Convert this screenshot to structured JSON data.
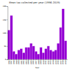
{
  "chart_data": {
    "type": "bar",
    "title": "Mean tax collected per year (1996-2019)",
    "x_label": "Year",
    "categories": [
      "1996",
      "1997",
      "1998",
      "1999",
      "2000",
      "2001",
      "2002",
      "2003",
      "2004",
      "2005",
      "2006",
      "2007",
      "2008",
      "2009",
      "2010",
      "2011",
      "2012",
      "2013",
      "2014",
      "2015",
      "2016",
      "2017",
      "2018",
      "2019"
    ],
    "values": [
      110,
      165,
      30,
      20,
      35,
      40,
      25,
      45,
      45,
      60,
      50,
      30,
      20,
      45,
      25,
      40,
      50,
      35,
      30,
      35,
      60,
      120,
      190,
      70
    ],
    "color": "#9400d3",
    "ylim": [
      0,
      200
    ],
    "yticks": [
      0,
      50,
      100,
      150,
      200
    ],
    "grid": false
  }
}
